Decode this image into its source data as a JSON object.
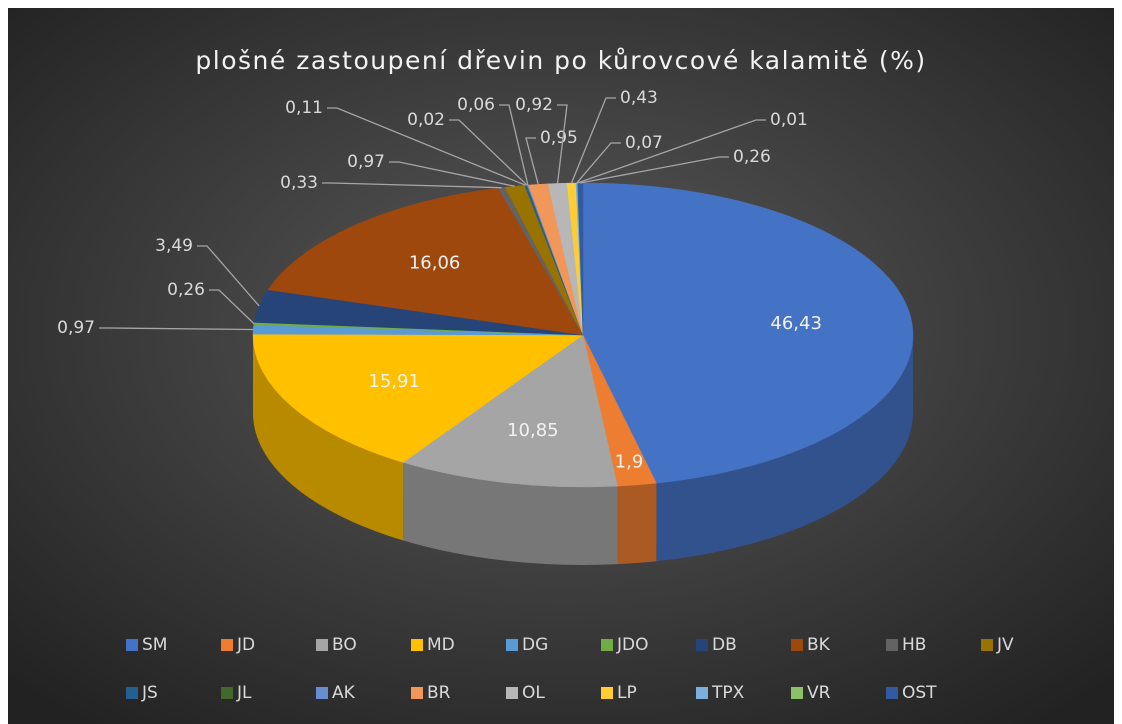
{
  "chart_data": {
    "type": "pie3d",
    "title": "plošné zastoupení dřevin po kůrovcové kalamitě (%)",
    "categories": [
      "SM",
      "JD",
      "BO",
      "MD",
      "DG",
      "JDO",
      "DB",
      "BK",
      "HB",
      "JV",
      "JS",
      "JL",
      "AK",
      "BR",
      "OL",
      "LP",
      "TPX",
      "VR",
      "OST"
    ],
    "values": [
      46.43,
      1.9,
      10.85,
      15.91,
      0.97,
      0.26,
      3.49,
      16.06,
      0.33,
      0.97,
      0.11,
      0.02,
      0.06,
      0.95,
      0.92,
      0.43,
      0.07,
      0.01,
      0.26
    ],
    "value_labels": [
      "46,43",
      "1,9",
      "10,85",
      "15,91",
      "0,97",
      "0,26",
      "3,49",
      "16,06",
      "0,33",
      "0,97",
      "0,11",
      "0,02",
      "0,06",
      "0,95",
      "0,92",
      "0,43",
      "0,07",
      "0,01",
      "0,26"
    ],
    "colors": [
      "#4472c4",
      "#ed7d31",
      "#a5a5a5",
      "#ffc000",
      "#5b9bd5",
      "#70ad47",
      "#264478",
      "#9e480e",
      "#636363",
      "#997300",
      "#255e91",
      "#43682b",
      "#698ed0",
      "#f1975a",
      "#b7b7b7",
      "#ffcd33",
      "#7cafdd",
      "#8cc168",
      "#335aa1"
    ],
    "legend": "bottom"
  }
}
